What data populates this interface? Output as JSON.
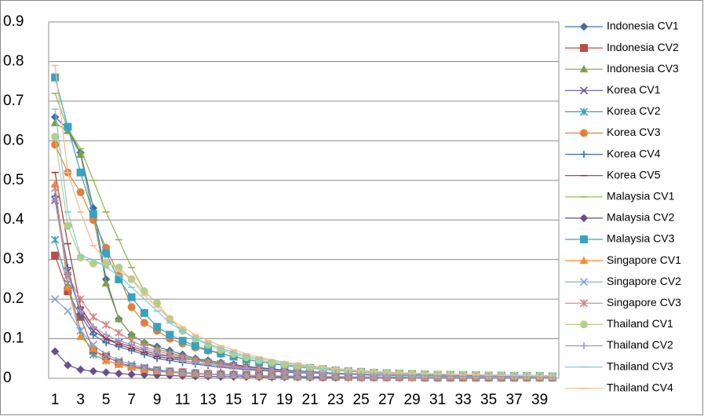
{
  "chart_data": {
    "type": "line",
    "categories": [
      1,
      null,
      3,
      null,
      5,
      null,
      7,
      null,
      9,
      null,
      11,
      null,
      13,
      null,
      15,
      null,
      17,
      null,
      19,
      null,
      21,
      null,
      23,
      null,
      25,
      null,
      27,
      null,
      29,
      null,
      31,
      null,
      33,
      null,
      35,
      null,
      37,
      null,
      39,
      null
    ],
    "ylim": [
      0,
      0.9
    ],
    "yticks": [
      0,
      0.1,
      0.2,
      0.3,
      0.4,
      0.5,
      0.6,
      0.7,
      0.8,
      0.9
    ],
    "grid": true,
    "legend": "right",
    "series": [
      {
        "name": "Indonesia CV1",
        "color": "#3F6BAA",
        "marker": "diamond",
        "values": [
          0.66,
          0.63,
          0.57,
          0.43,
          0.25,
          0.15,
          0.11,
          0.09,
          0.08,
          0.07,
          0.06,
          0.05,
          0.045,
          0.04,
          0.035,
          0.03,
          0.027,
          0.024,
          0.021,
          0.019,
          0.017,
          0.015,
          0.013,
          0.012,
          0.011,
          0.01,
          0.009,
          0.008,
          0.007,
          0.007,
          0.006,
          0.006,
          0.005,
          0.005,
          0.005,
          0.004,
          0.004,
          0.004,
          0.004,
          0.003
        ]
      },
      {
        "name": "Indonesia CV2",
        "color": "#BE4B48",
        "marker": "square",
        "values": [
          0.31,
          0.22,
          0.155,
          0.07,
          0.055,
          0.04,
          0.03,
          0.025,
          0.02,
          0.017,
          0.015,
          0.013,
          0.011,
          0.01,
          0.009,
          0.008,
          0.007,
          0.006,
          0.006,
          0.005,
          0.005,
          0.004,
          0.004,
          0.004,
          0.003,
          0.003,
          0.003,
          0.003,
          0.003,
          0.002,
          0.002,
          0.002,
          0.002,
          0.002,
          0.002,
          0.002,
          0.002,
          0.002,
          0.002,
          0.002
        ]
      },
      {
        "name": "Indonesia CV3",
        "color": "#7FA045",
        "marker": "triangle",
        "values": [
          0.645,
          0.625,
          0.565,
          0.41,
          0.24,
          0.15,
          0.11,
          0.09,
          0.075,
          0.065,
          0.055,
          0.048,
          0.042,
          0.037,
          0.032,
          0.028,
          0.025,
          0.022,
          0.02,
          0.018,
          0.016,
          0.014,
          0.013,
          0.012,
          0.011,
          0.01,
          0.009,
          0.008,
          0.008,
          0.007,
          0.007,
          0.006,
          0.006,
          0.005,
          0.005,
          0.005,
          0.004,
          0.004,
          0.004,
          0.004
        ]
      },
      {
        "name": "Korea CV1",
        "color": "#6A5192",
        "marker": "x",
        "values": [
          0.45,
          0.27,
          0.17,
          0.12,
          0.1,
          0.09,
          0.08,
          0.07,
          0.06,
          0.055,
          0.05,
          0.045,
          0.04,
          0.036,
          0.032,
          0.028,
          0.025,
          0.022,
          0.02,
          0.018,
          0.016,
          0.014,
          0.013,
          0.012,
          0.011,
          0.01,
          0.009,
          0.008,
          0.008,
          0.007,
          0.007,
          0.006,
          0.006,
          0.005,
          0.005,
          0.005,
          0.004,
          0.004,
          0.004,
          0.004
        ]
      },
      {
        "name": "Korea CV2",
        "color": "#3A9BB6",
        "marker": "asterisk",
        "values": [
          0.35,
          0.24,
          0.12,
          0.06,
          0.045,
          0.035,
          0.028,
          0.022,
          0.018,
          0.015,
          0.013,
          0.011,
          0.01,
          0.009,
          0.008,
          0.007,
          0.006,
          0.006,
          0.005,
          0.005,
          0.004,
          0.004,
          0.004,
          0.003,
          0.003,
          0.003,
          0.003,
          0.003,
          0.002,
          0.002,
          0.002,
          0.002,
          0.002,
          0.002,
          0.002,
          0.002,
          0.002,
          0.002,
          0.002,
          0.002
        ]
      },
      {
        "name": "Korea CV3",
        "color": "#E2803A",
        "marker": "circle",
        "values": [
          0.59,
          0.52,
          0.47,
          0.4,
          0.33,
          0.26,
          0.18,
          0.14,
          0.12,
          0.1,
          0.088,
          0.078,
          0.07,
          0.062,
          0.055,
          0.048,
          0.042,
          0.037,
          0.033,
          0.029,
          0.026,
          0.023,
          0.02,
          0.018,
          0.016,
          0.014,
          0.013,
          0.012,
          0.011,
          0.01,
          0.009,
          0.009,
          0.008,
          0.008,
          0.007,
          0.007,
          0.006,
          0.006,
          0.006,
          0.005
        ]
      },
      {
        "name": "Korea CV4",
        "color": "#3A6DB0",
        "marker": "plus",
        "values": [
          0.46,
          0.28,
          0.16,
          0.11,
          0.09,
          0.08,
          0.07,
          0.06,
          0.05,
          0.045,
          0.04,
          0.036,
          0.032,
          0.028,
          0.025,
          0.022,
          0.02,
          0.018,
          0.016,
          0.014,
          0.013,
          0.012,
          0.011,
          0.01,
          0.009,
          0.008,
          0.008,
          0.007,
          0.007,
          0.006,
          0.006,
          0.005,
          0.005,
          0.005,
          0.004,
          0.004,
          0.004,
          0.004,
          0.003,
          0.003
        ]
      },
      {
        "name": "Korea CV5",
        "color": "#A13734",
        "marker": "dash",
        "values": [
          0.52,
          0.34,
          0.18,
          0.13,
          0.1,
          0.085,
          0.075,
          0.065,
          0.055,
          0.05,
          0.045,
          0.04,
          0.036,
          0.032,
          0.028,
          0.025,
          0.022,
          0.02,
          0.018,
          0.016,
          0.014,
          0.013,
          0.012,
          0.011,
          0.01,
          0.009,
          0.008,
          0.008,
          0.007,
          0.007,
          0.006,
          0.006,
          0.005,
          0.005,
          0.005,
          0.004,
          0.004,
          0.004,
          0.004,
          0.003
        ]
      },
      {
        "name": "Malaysia CV1",
        "color": "#8BB64A",
        "marker": "dash",
        "values": [
          0.72,
          0.63,
          0.58,
          0.5,
          0.42,
          0.35,
          0.28,
          0.22,
          0.19,
          0.15,
          0.12,
          0.1,
          0.085,
          0.072,
          0.062,
          0.053,
          0.046,
          0.04,
          0.035,
          0.031,
          0.027,
          0.024,
          0.021,
          0.019,
          0.017,
          0.015,
          0.014,
          0.013,
          0.012,
          0.011,
          0.01,
          0.01,
          0.009,
          0.009,
          0.008,
          0.008,
          0.007,
          0.007,
          0.007,
          0.006
        ]
      },
      {
        "name": "Malaysia CV2",
        "color": "#6A4C93",
        "marker": "diamond",
        "values": [
          0.068,
          0.033,
          0.022,
          0.018,
          0.015,
          0.012,
          0.01,
          0.009,
          0.008,
          0.007,
          0.006,
          0.005,
          0.005,
          0.004,
          0.004,
          0.004,
          0.003,
          0.003,
          0.003,
          0.003,
          0.002,
          0.002,
          0.002,
          0.002,
          0.002,
          0.002,
          0.002,
          0.002,
          0.002,
          0.002,
          0.002,
          0.002,
          0.002,
          0.002,
          0.002,
          0.002,
          0.002,
          0.002,
          0.002,
          0.002
        ]
      },
      {
        "name": "Malaysia CV3",
        "color": "#37A3C1",
        "marker": "square",
        "values": [
          0.76,
          0.635,
          0.52,
          0.415,
          0.315,
          0.25,
          0.205,
          0.165,
          0.13,
          0.11,
          0.095,
          0.082,
          0.072,
          0.063,
          0.055,
          0.048,
          0.042,
          0.037,
          0.033,
          0.029,
          0.026,
          0.023,
          0.02,
          0.018,
          0.016,
          0.014,
          0.013,
          0.012,
          0.011,
          0.01,
          0.009,
          0.009,
          0.008,
          0.008,
          0.007,
          0.007,
          0.006,
          0.006,
          0.006,
          0.005
        ]
      },
      {
        "name": "Singapore CV1",
        "color": "#F58A2D",
        "marker": "triangle",
        "values": [
          0.49,
          0.23,
          0.105,
          0.075,
          0.045,
          0.035,
          0.028,
          0.022,
          0.018,
          0.015,
          0.013,
          0.011,
          0.01,
          0.009,
          0.008,
          0.007,
          0.006,
          0.006,
          0.005,
          0.005,
          0.004,
          0.004,
          0.004,
          0.003,
          0.003,
          0.003,
          0.003,
          0.003,
          0.002,
          0.002,
          0.002,
          0.002,
          0.002,
          0.002,
          0.002,
          0.002,
          0.002,
          0.002,
          0.002,
          0.002
        ]
      },
      {
        "name": "Singapore CV2",
        "color": "#7FA3D3",
        "marker": "x",
        "values": [
          0.2,
          0.17,
          0.12,
          0.085,
          0.06,
          0.045,
          0.035,
          0.028,
          0.022,
          0.018,
          0.015,
          0.013,
          0.011,
          0.01,
          0.009,
          0.008,
          0.007,
          0.006,
          0.006,
          0.005,
          0.005,
          0.004,
          0.004,
          0.004,
          0.003,
          0.003,
          0.003,
          0.003,
          0.003,
          0.002,
          0.002,
          0.002,
          0.002,
          0.002,
          0.002,
          0.002,
          0.002,
          0.002,
          0.002,
          0.002
        ]
      },
      {
        "name": "Singapore CV3",
        "color": "#D38584",
        "marker": "asterisk",
        "values": [
          0.48,
          0.26,
          0.2,
          0.155,
          0.135,
          0.115,
          0.095,
          0.08,
          0.07,
          0.06,
          0.052,
          0.045,
          0.04,
          0.035,
          0.031,
          0.027,
          0.024,
          0.021,
          0.019,
          0.017,
          0.015,
          0.013,
          0.012,
          0.011,
          0.01,
          0.009,
          0.008,
          0.008,
          0.007,
          0.007,
          0.006,
          0.006,
          0.005,
          0.005,
          0.005,
          0.004,
          0.004,
          0.004,
          0.004,
          0.003
        ]
      },
      {
        "name": "Thailand CV1",
        "color": "#B3CF88",
        "marker": "circle",
        "values": [
          0.61,
          0.385,
          0.305,
          0.29,
          0.29,
          0.28,
          0.25,
          0.22,
          0.19,
          0.15,
          0.12,
          0.1,
          0.085,
          0.072,
          0.062,
          0.053,
          0.046,
          0.04,
          0.035,
          0.031,
          0.027,
          0.024,
          0.021,
          0.019,
          0.017,
          0.015,
          0.014,
          0.013,
          0.012,
          0.011,
          0.01,
          0.01,
          0.009,
          0.009,
          0.008,
          0.008,
          0.007,
          0.007,
          0.007,
          0.006
        ]
      },
      {
        "name": "Thailand CV2",
        "color": "#A596BD",
        "marker": "plus",
        "values": [
          0.45,
          0.26,
          0.17,
          0.13,
          0.11,
          0.095,
          0.085,
          0.075,
          0.065,
          0.055,
          0.045,
          0.04,
          0.036,
          0.032,
          0.028,
          0.025,
          0.022,
          0.02,
          0.018,
          0.016,
          0.014,
          0.013,
          0.012,
          0.011,
          0.01,
          0.009,
          0.008,
          0.008,
          0.007,
          0.007,
          0.006,
          0.006,
          0.005,
          0.005,
          0.005,
          0.004,
          0.004,
          0.004,
          0.004,
          0.003
        ]
      },
      {
        "name": "Thailand CV3",
        "color": "#86C7DA",
        "marker": "dash",
        "values": [
          0.68,
          0.42,
          0.31,
          0.3,
          0.28,
          0.26,
          0.23,
          0.2,
          0.17,
          0.14,
          0.12,
          0.1,
          0.088,
          0.076,
          0.066,
          0.057,
          0.05,
          0.044,
          0.039,
          0.034,
          0.03,
          0.026,
          0.023,
          0.021,
          0.019,
          0.017,
          0.015,
          0.014,
          0.013,
          0.012,
          0.011,
          0.01,
          0.01,
          0.009,
          0.009,
          0.008,
          0.008,
          0.007,
          0.007,
          0.007
        ]
      },
      {
        "name": "Thailand CV4",
        "color": "#F9B889",
        "marker": "dash",
        "values": [
          0.79,
          0.52,
          0.42,
          0.335,
          0.3,
          0.27,
          0.25,
          0.21,
          0.18,
          0.15,
          0.13,
          0.11,
          0.095,
          0.082,
          0.072,
          0.062,
          0.054,
          0.047,
          0.041,
          0.036,
          0.032,
          0.028,
          0.025,
          0.022,
          0.02,
          0.018,
          0.016,
          0.014,
          0.013,
          0.012,
          0.011,
          0.01,
          0.009,
          0.009,
          0.008,
          0.008,
          0.007,
          0.007,
          0.006,
          0.006
        ]
      }
    ]
  }
}
